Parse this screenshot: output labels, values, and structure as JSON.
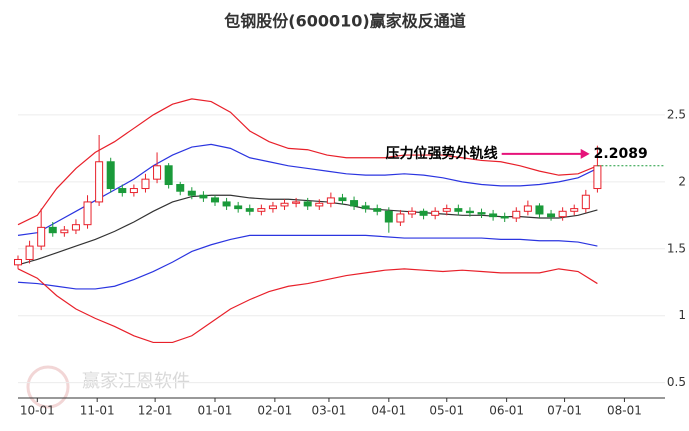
{
  "chart_data": {
    "type": "candlestick",
    "title": "包钢股份(600010)赢家极反通道",
    "watermark": "赢家江恩软件",
    "xlim": [
      0,
      335
    ],
    "xticks": [
      {
        "value": 10,
        "label": "10-01"
      },
      {
        "value": 41,
        "label": "11-01"
      },
      {
        "value": 71,
        "label": "12-01"
      },
      {
        "value": 102,
        "label": "01-01"
      },
      {
        "value": 133,
        "label": "02-01"
      },
      {
        "value": 161,
        "label": "03-01"
      },
      {
        "value": 192,
        "label": "04-01"
      },
      {
        "value": 222,
        "label": "05-01"
      },
      {
        "value": 253,
        "label": "06-01"
      },
      {
        "value": 283,
        "label": "07-01"
      },
      {
        "value": 314,
        "label": "08-01"
      }
    ],
    "ylim": [
      0.4,
      3.0
    ],
    "yticks": [
      0.5,
      1,
      1.5,
      2,
      2.5
    ],
    "grid": true,
    "band_x": [
      0,
      10,
      20,
      30,
      40,
      50,
      60,
      70,
      80,
      90,
      100,
      110,
      120,
      130,
      140,
      150,
      160,
      170,
      180,
      190,
      200,
      210,
      220,
      230,
      240,
      250,
      260,
      270,
      280,
      290,
      300
    ],
    "bands": [
      {
        "color": "#e8202a",
        "values": [
          1.68,
          1.75,
          1.95,
          2.1,
          2.22,
          2.3,
          2.4,
          2.5,
          2.58,
          2.62,
          2.6,
          2.52,
          2.38,
          2.3,
          2.25,
          2.24,
          2.2,
          2.18,
          2.18,
          2.18,
          2.2,
          2.2,
          2.2,
          2.18,
          2.16,
          2.15,
          2.12,
          2.08,
          2.05,
          2.06,
          2.12
        ]
      },
      {
        "color": "#2b35e0",
        "values": [
          1.6,
          1.62,
          1.7,
          1.78,
          1.86,
          1.94,
          2.02,
          2.12,
          2.2,
          2.26,
          2.28,
          2.25,
          2.18,
          2.15,
          2.12,
          2.1,
          2.08,
          2.06,
          2.05,
          2.05,
          2.06,
          2.05,
          2.03,
          2.0,
          1.98,
          1.97,
          1.97,
          1.98,
          2.0,
          2.03,
          2.1
        ]
      },
      {
        "color": "#333333",
        "values": [
          1.38,
          1.42,
          1.47,
          1.52,
          1.57,
          1.63,
          1.7,
          1.78,
          1.85,
          1.89,
          1.9,
          1.9,
          1.88,
          1.87,
          1.87,
          1.86,
          1.85,
          1.83,
          1.8,
          1.79,
          1.78,
          1.77,
          1.76,
          1.75,
          1.75,
          1.74,
          1.74,
          1.73,
          1.73,
          1.75,
          1.79
        ]
      },
      {
        "color": "#2b35e0",
        "values": [
          1.25,
          1.24,
          1.22,
          1.2,
          1.2,
          1.22,
          1.27,
          1.33,
          1.4,
          1.48,
          1.53,
          1.57,
          1.6,
          1.6,
          1.6,
          1.6,
          1.6,
          1.6,
          1.6,
          1.59,
          1.58,
          1.58,
          1.58,
          1.58,
          1.58,
          1.57,
          1.57,
          1.56,
          1.56,
          1.55,
          1.52
        ]
      },
      {
        "color": "#e8202a",
        "values": [
          1.35,
          1.28,
          1.15,
          1.05,
          0.98,
          0.92,
          0.85,
          0.8,
          0.8,
          0.85,
          0.95,
          1.05,
          1.12,
          1.18,
          1.22,
          1.24,
          1.27,
          1.3,
          1.32,
          1.34,
          1.35,
          1.34,
          1.33,
          1.34,
          1.33,
          1.32,
          1.32,
          1.32,
          1.35,
          1.33,
          1.24
        ]
      }
    ],
    "up_color": "#e8202a",
    "down_color": "#1a9a3a",
    "candles": {
      "x": [
        0,
        6,
        12,
        18,
        24,
        30,
        36,
        42,
        48,
        54,
        60,
        66,
        72,
        78,
        84,
        90,
        96,
        102,
        108,
        114,
        120,
        126,
        132,
        138,
        144,
        150,
        156,
        162,
        168,
        174,
        180,
        186,
        192,
        198,
        204,
        210,
        216,
        222,
        228,
        234,
        240,
        246,
        252,
        258,
        264,
        270,
        276,
        282,
        288,
        294,
        300
      ],
      "open": [
        1.38,
        1.42,
        1.52,
        1.66,
        1.62,
        1.64,
        1.68,
        1.85,
        2.15,
        1.95,
        1.92,
        1.95,
        2.02,
        2.12,
        1.98,
        1.93,
        1.9,
        1.88,
        1.85,
        1.82,
        1.8,
        1.78,
        1.8,
        1.82,
        1.84,
        1.85,
        1.82,
        1.84,
        1.88,
        1.86,
        1.82,
        1.8,
        1.78,
        1.7,
        1.76,
        1.78,
        1.75,
        1.78,
        1.8,
        1.78,
        1.77,
        1.76,
        1.74,
        1.73,
        1.78,
        1.82,
        1.76,
        1.74,
        1.78,
        1.8,
        1.95
      ],
      "high": [
        1.45,
        1.56,
        1.8,
        1.7,
        1.67,
        1.72,
        1.9,
        2.35,
        2.18,
        1.98,
        1.98,
        2.06,
        2.22,
        2.14,
        2.0,
        1.96,
        1.93,
        1.9,
        1.88,
        1.85,
        1.83,
        1.83,
        1.85,
        1.87,
        1.88,
        1.88,
        1.87,
        1.92,
        1.91,
        1.89,
        1.85,
        1.83,
        1.81,
        1.79,
        1.81,
        1.8,
        1.81,
        1.83,
        1.83,
        1.81,
        1.8,
        1.79,
        1.77,
        1.81,
        1.86,
        1.84,
        1.79,
        1.81,
        1.83,
        1.94,
        2.27
      ],
      "low": [
        1.35,
        1.39,
        1.49,
        1.59,
        1.59,
        1.61,
        1.65,
        1.82,
        1.92,
        1.89,
        1.89,
        1.92,
        1.99,
        1.95,
        1.9,
        1.87,
        1.85,
        1.82,
        1.79,
        1.77,
        1.75,
        1.75,
        1.77,
        1.79,
        1.81,
        1.79,
        1.79,
        1.81,
        1.83,
        1.79,
        1.77,
        1.75,
        1.62,
        1.67,
        1.73,
        1.72,
        1.72,
        1.75,
        1.75,
        1.74,
        1.73,
        1.71,
        1.7,
        1.7,
        1.75,
        1.73,
        1.71,
        1.71,
        1.75,
        1.77,
        1.92
      ],
      "close": [
        1.42,
        1.52,
        1.66,
        1.62,
        1.64,
        1.68,
        1.85,
        2.15,
        1.95,
        1.92,
        1.95,
        2.02,
        2.12,
        1.98,
        1.93,
        1.9,
        1.88,
        1.85,
        1.82,
        1.8,
        1.78,
        1.8,
        1.82,
        1.84,
        1.85,
        1.82,
        1.84,
        1.88,
        1.86,
        1.82,
        1.8,
        1.78,
        1.7,
        1.76,
        1.78,
        1.75,
        1.78,
        1.8,
        1.78,
        1.77,
        1.76,
        1.74,
        1.73,
        1.78,
        1.82,
        1.76,
        1.74,
        1.78,
        1.8,
        1.9,
        2.12
      ]
    },
    "last_close_line": {
      "color": "#1a9a3a",
      "value": 2.12
    },
    "annotation": {
      "text": "压力位强势外轨线",
      "value": 2.2089,
      "x": 296,
      "color": "#e6137a"
    }
  }
}
